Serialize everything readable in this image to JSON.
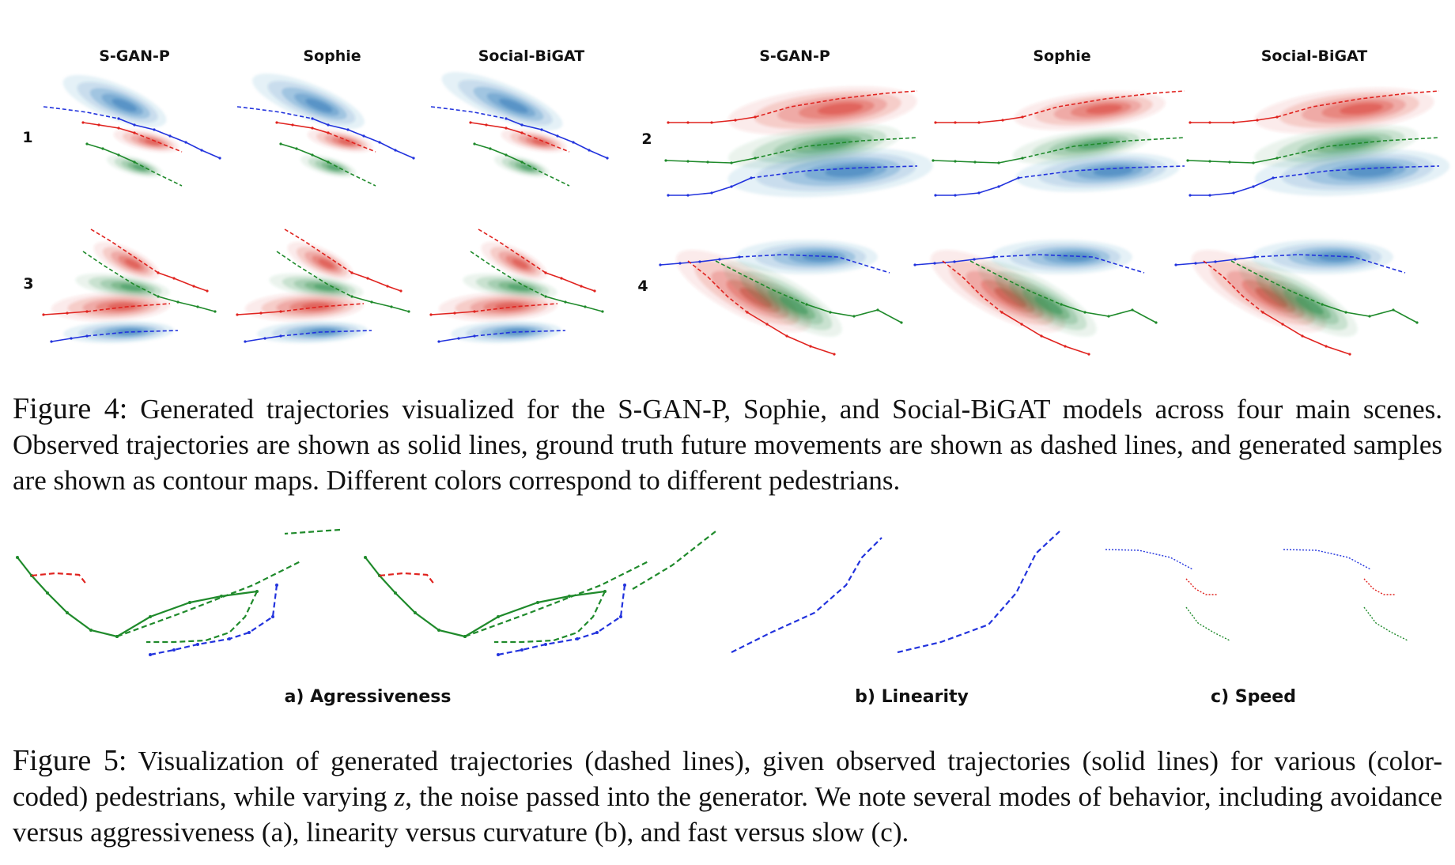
{
  "figure4": {
    "column_titles": [
      "S-GAN-P",
      "Sophie",
      "Social-BiGAT",
      "S-GAN-P",
      "Sophie",
      "Social-BiGAT"
    ],
    "row_labels": [
      "1",
      "2",
      "3",
      "4"
    ],
    "caption_label": "Figure 4:",
    "caption_text": "Generated trajectories visualized for the S-GAN-P, Sophie, and Social-BiGAT models across four main scenes. Observed trajectories are shown as solid lines, ground truth future movements are shown as dashed lines, and generated samples are shown as contour maps. Different colors correspond to different pedestrians."
  },
  "figure5": {
    "subfigure_labels": [
      "a) Agressiveness",
      "b) Linearity",
      "c) Speed"
    ],
    "caption_label": "Figure 5:",
    "caption_text_1": "Visualization of generated trajectories (dashed lines), given observed trajectories (solid lines) for various (color-coded) pedestrians, while varying ",
    "caption_var": "z",
    "caption_text_2": ", the noise passed into the generator. We note several modes of behavior, including avoidance versus aggressiveness (a), linearity versus curvature (b), and fast versus slow (c)."
  },
  "colors": {
    "red": "#e0231f",
    "green": "#1f8a2b",
    "blue": "#2233dd",
    "red_contour": "#d8342a",
    "green_contour": "#238b45",
    "blue_contour": "#2171b5"
  }
}
